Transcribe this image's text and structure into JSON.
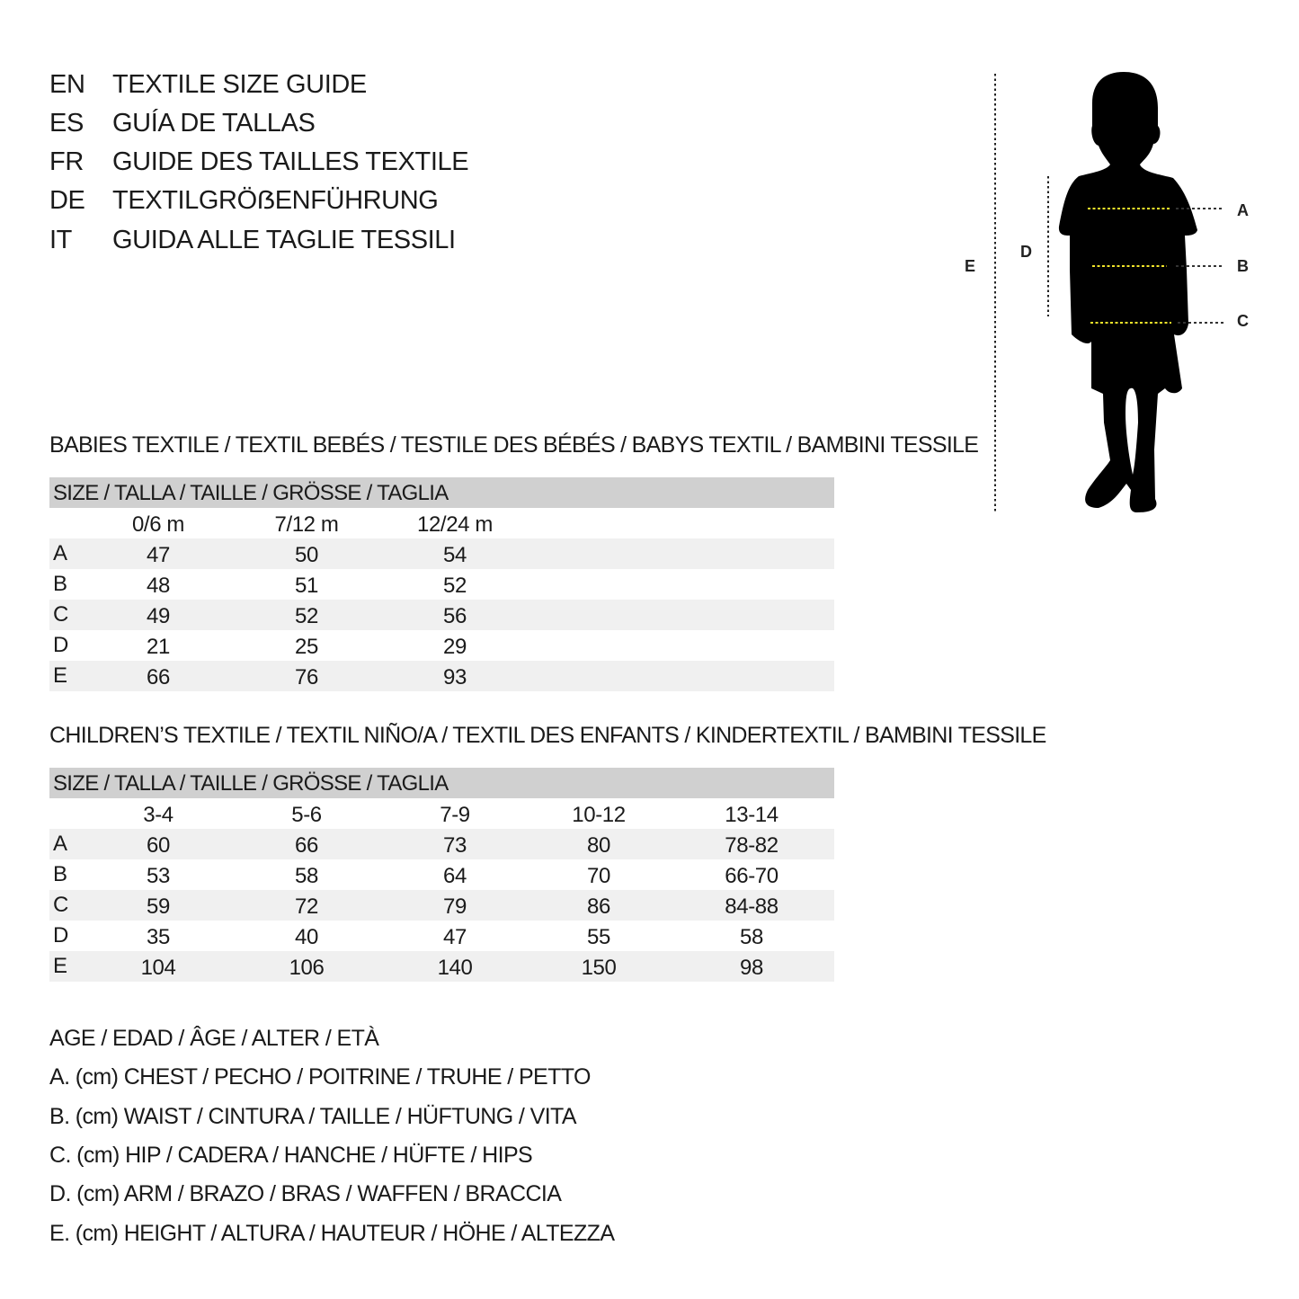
{
  "titles": [
    {
      "code": "EN",
      "text": "TEXTILE SIZE GUIDE"
    },
    {
      "code": "ES",
      "text": "GUÍA DE TALLAS"
    },
    {
      "code": "FR",
      "text": "GUIDE DES TAILLES TEXTILE"
    },
    {
      "code": "DE",
      "text": "TEXTILGRÖẞENFÜHRUNG"
    },
    {
      "code": "IT",
      "text": "GUIDA ALLE TAGLIE TESSILI"
    }
  ],
  "figure": {
    "labels": {
      "a": "A",
      "b": "B",
      "c": "C",
      "d": "D",
      "e": "E"
    },
    "measure_line_color": "#f2e52a"
  },
  "babies": {
    "title": "BABIES TEXTILE / TEXTIL BEBÉS / TESTILE DES BÉBÉS / BABYS TEXTIL / BAMBINI TESSILE",
    "header": "SIZE / TALLA / TAILLE / GRÖSSE / TAGLIA",
    "columns": [
      "0/6 m",
      "7/12 m",
      "12/24 m"
    ],
    "rows": [
      {
        "label": "A",
        "values": [
          "47",
          "50",
          "54"
        ]
      },
      {
        "label": "B",
        "values": [
          "48",
          "51",
          "52"
        ]
      },
      {
        "label": "C",
        "values": [
          "49",
          "52",
          "56"
        ]
      },
      {
        "label": "D",
        "values": [
          "21",
          "25",
          "29"
        ]
      },
      {
        "label": "E",
        "values": [
          "66",
          "76",
          "93"
        ]
      }
    ]
  },
  "children": {
    "title": "CHILDREN’S TEXTILE / TEXTIL NIÑO/A / TEXTIL DES ENFANTS / KINDERTEXTIL / BAMBINI TESSILE",
    "header": "SIZE / TALLA / TAILLE / GRÖSSE / TAGLIA",
    "columns": [
      "3-4",
      "5-6",
      "7-9",
      "10-12",
      "13-14"
    ],
    "rows": [
      {
        "label": "A",
        "values": [
          "60",
          "66",
          "73",
          "80",
          "78-82"
        ]
      },
      {
        "label": "B",
        "values": [
          "53",
          "58",
          "64",
          "70",
          "66-70"
        ]
      },
      {
        "label": "C",
        "values": [
          "59",
          "72",
          "79",
          "86",
          "84-88"
        ]
      },
      {
        "label": "D",
        "values": [
          "35",
          "40",
          "47",
          "55",
          "58"
        ]
      },
      {
        "label": "E",
        "values": [
          "104",
          "106",
          "140",
          "150",
          "98"
        ]
      }
    ]
  },
  "legend": [
    "AGE / EDAD / ÂGE / ALTER / ETÀ",
    "A. (cm) CHEST / PECHO / POITRINE / TRUHE / PETTO",
    "B. (cm) WAIST / CINTURA / TAILLE / HÜFTUNG / VITA",
    "C. (cm) HIP / CADERA / HANCHE / HÜFTE / HIPS",
    "D. (cm) ARM / BRAZO / BRAS / WAFFEN / BRACCIA",
    "E. (cm) HEIGHT / ALTURA / HAUTEUR / HÖHE / ALTEZZA"
  ]
}
